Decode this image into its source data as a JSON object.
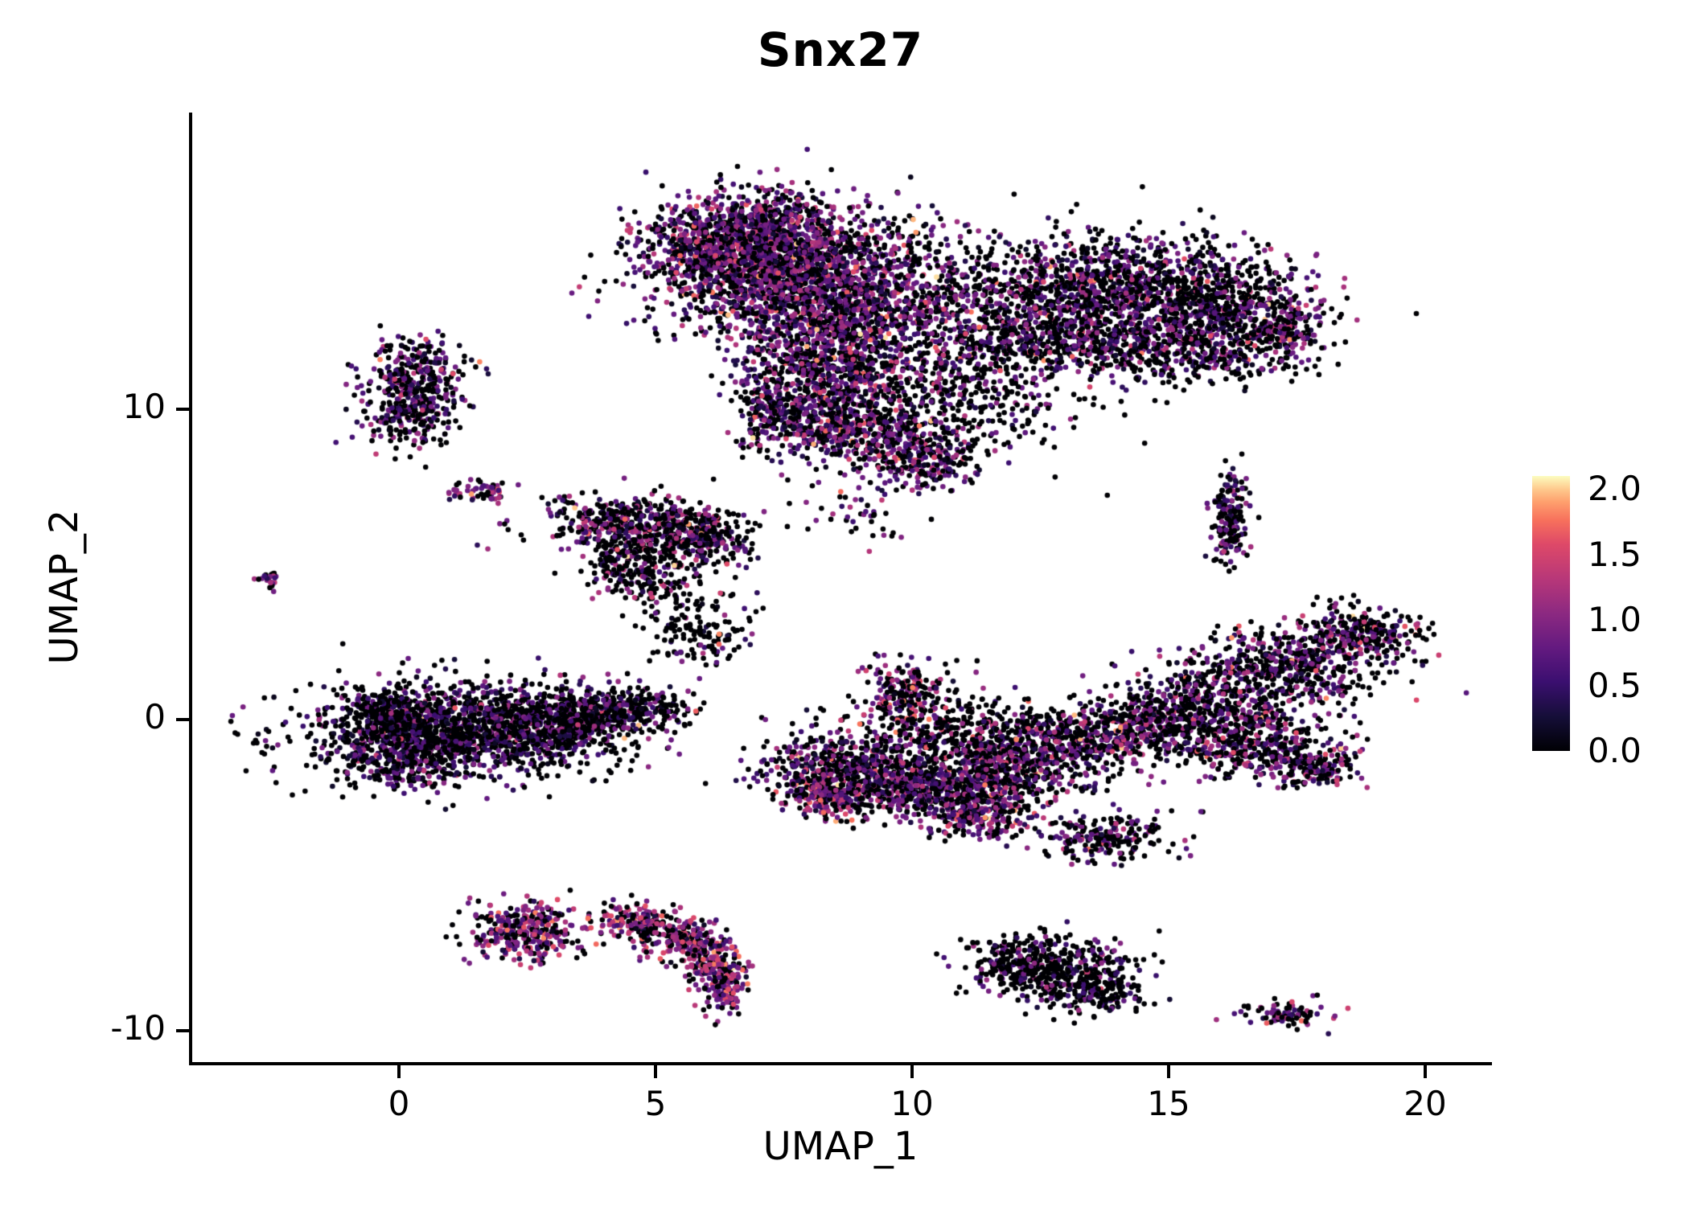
{
  "chart_data": {
    "type": "scatter",
    "title": "Snx27",
    "xlabel": "UMAP_1",
    "ylabel": "UMAP_2",
    "xlim": [
      -4.1,
      21.3
    ],
    "ylim": [
      -11.1,
      19.5
    ],
    "grid": false,
    "point_radius": 3.3,
    "seed": 1337,
    "xticks": [
      {
        "v": 0,
        "label": "0"
      },
      {
        "v": 5,
        "label": "5"
      },
      {
        "v": 10,
        "label": "10"
      },
      {
        "v": 15,
        "label": "15"
      },
      {
        "v": 20,
        "label": "20"
      }
    ],
    "yticks": [
      {
        "v": -10,
        "label": "-10"
      },
      {
        "v": 0,
        "label": "0"
      },
      {
        "v": 10,
        "label": "10"
      }
    ],
    "legend": {
      "position": "right",
      "vmin": 0,
      "vmax": 2.1,
      "ticks": [
        {
          "v": 2.0,
          "label": "2.0"
        },
        {
          "v": 1.5,
          "label": "1.5"
        },
        {
          "v": 1.0,
          "label": "1.0"
        },
        {
          "v": 0.5,
          "label": "0.5"
        },
        {
          "v": 0.0,
          "label": "0.0"
        }
      ]
    },
    "colormap": [
      {
        "v": 0.0,
        "c": "#000004"
      },
      {
        "v": 0.26,
        "c": "#150e38"
      },
      {
        "v": 0.53,
        "c": "#3b0f70"
      },
      {
        "v": 0.79,
        "c": "#641a80"
      },
      {
        "v": 1.05,
        "c": "#8c2981"
      },
      {
        "v": 1.31,
        "c": "#b73779"
      },
      {
        "v": 1.58,
        "c": "#de4968"
      },
      {
        "v": 1.76,
        "c": "#f7705c"
      },
      {
        "v": 1.9,
        "c": "#fe9f6d"
      },
      {
        "v": 2.0,
        "c": "#fec98d"
      },
      {
        "v": 2.1,
        "c": "#fcfdbf"
      }
    ],
    "clusters": [
      {
        "name": "top-central",
        "expr": {
          "p0": 0.38,
          "mean": 0.78,
          "sd": 0.38
        },
        "components": [
          {
            "x": 7.5,
            "y": 14.7,
            "sx": 1.35,
            "sy": 0.95,
            "n": 1700
          },
          {
            "x": 6.4,
            "y": 15.3,
            "sx": 0.8,
            "sy": 0.65,
            "n": 500
          },
          {
            "x": 7.2,
            "y": 16.2,
            "sx": 0.6,
            "sy": 0.45,
            "n": 160
          },
          {
            "x": 8.6,
            "y": 13.1,
            "sx": 1.0,
            "sy": 0.8,
            "n": 700
          },
          {
            "x": 8.4,
            "y": 11.4,
            "sx": 0.9,
            "sy": 0.9,
            "n": 650
          },
          {
            "x": 8.0,
            "y": 9.9,
            "sx": 0.6,
            "sy": 0.7,
            "n": 300
          },
          {
            "x": 9.3,
            "y": 9.0,
            "sx": 0.7,
            "sy": 0.55,
            "n": 300
          },
          {
            "x": 7.15,
            "y": 9.9,
            "sx": 0.25,
            "sy": 0.7,
            "n": 110,
            "p0": 0.5
          },
          {
            "x": 10.3,
            "y": 8.2,
            "sx": 0.5,
            "sy": 0.4,
            "n": 160
          },
          {
            "x": 10.6,
            "y": 10.6,
            "sx": 1.3,
            "sy": 1.2,
            "n": 520,
            "p0": 0.68
          },
          {
            "x": 10.9,
            "y": 14.0,
            "sx": 0.9,
            "sy": 0.9,
            "n": 260,
            "p0": 0.62
          },
          {
            "x": 11.9,
            "y": 12.6,
            "sx": 0.7,
            "sy": 0.9,
            "n": 200,
            "p0": 0.6
          },
          {
            "x": 9.0,
            "y": 6.8,
            "sx": 0.6,
            "sy": 0.6,
            "n": 40,
            "p0": 0.7
          }
        ]
      },
      {
        "name": "top-right",
        "expr": {
          "p0": 0.52,
          "mean": 0.72,
          "sd": 0.36
        },
        "components": [
          {
            "x": 14.2,
            "y": 13.8,
            "sx": 1.5,
            "sy": 0.95,
            "n": 1250
          },
          {
            "x": 16.3,
            "y": 12.9,
            "sx": 0.8,
            "sy": 0.8,
            "n": 400
          },
          {
            "x": 13.2,
            "y": 12.3,
            "sx": 0.9,
            "sy": 0.55,
            "n": 300
          },
          {
            "x": 15.2,
            "y": 11.7,
            "sx": 1.1,
            "sy": 0.45,
            "n": 280
          },
          {
            "x": 17.3,
            "y": 12.6,
            "sx": 0.4,
            "sy": 0.5,
            "n": 150,
            "mean": 0.9
          }
        ]
      },
      {
        "name": "upper-left",
        "expr": {
          "p0": 0.45,
          "mean": 0.7,
          "sd": 0.35
        },
        "components": [
          {
            "x": 0.3,
            "y": 11.0,
            "sx": 0.5,
            "sy": 0.7,
            "n": 300
          },
          {
            "x": 0.2,
            "y": 9.7,
            "sx": 0.45,
            "sy": 0.5,
            "n": 180,
            "p0": 0.6
          }
        ]
      },
      {
        "name": "tiny-upper-left",
        "expr": {
          "p0": 0.35,
          "mean": 1.0,
          "sd": 0.4
        },
        "components": [
          {
            "x": 1.6,
            "y": 7.35,
            "sx": 0.33,
            "sy": 0.17,
            "n": 55
          }
        ]
      },
      {
        "name": "far-left-dot",
        "expr": {
          "p0": 0.5,
          "mean": 0.9,
          "sd": 0.4
        },
        "components": [
          {
            "x": -2.55,
            "y": 4.55,
            "sx": 0.12,
            "sy": 0.16,
            "n": 22
          }
        ]
      },
      {
        "name": "mid-left",
        "expr": {
          "p0": 0.58,
          "mean": 0.8,
          "sd": 0.4
        },
        "components": [
          {
            "x": 4.5,
            "y": 6.3,
            "sx": 0.85,
            "sy": 0.45,
            "n": 420
          },
          {
            "x": 5.9,
            "y": 5.8,
            "sx": 0.55,
            "sy": 0.5,
            "n": 280
          },
          {
            "x": 4.6,
            "y": 4.9,
            "sx": 0.5,
            "sy": 0.55,
            "n": 230
          },
          {
            "x": 5.5,
            "y": 3.3,
            "sx": 0.45,
            "sy": 0.75,
            "n": 110,
            "p0": 0.8
          },
          {
            "x": 6.4,
            "y": 2.8,
            "sx": 0.4,
            "sy": 0.5,
            "n": 50,
            "p0": 0.8
          }
        ]
      },
      {
        "name": "left-main",
        "expr": {
          "p0": 0.62,
          "mean": 0.62,
          "sd": 0.33
        },
        "components": [
          {
            "x": 1.2,
            "y": -0.35,
            "sx": 1.5,
            "sy": 0.75,
            "n": 1500
          },
          {
            "x": 3.3,
            "y": 0.0,
            "sx": 0.9,
            "sy": 0.5,
            "n": 480
          },
          {
            "x": 0.1,
            "y": -1.2,
            "sx": 0.65,
            "sy": 0.55,
            "n": 280
          },
          {
            "x": 4.6,
            "y": 0.4,
            "sx": 0.55,
            "sy": 0.3,
            "n": 170
          },
          {
            "x": -0.3,
            "y": 0.2,
            "sx": 0.4,
            "sy": 0.4,
            "n": 150
          }
        ]
      },
      {
        "name": "center-body",
        "expr": {
          "p0": 0.48,
          "mean": 0.8,
          "sd": 0.38
        },
        "components": [
          {
            "x": 9.9,
            "y": 0.7,
            "sx": 0.45,
            "sy": 0.6,
            "n": 260,
            "mean": 0.95
          },
          {
            "x": 8.8,
            "y": -1.6,
            "sx": 0.85,
            "sy": 0.65,
            "n": 600
          },
          {
            "x": 10.4,
            "y": -2.3,
            "sx": 0.9,
            "sy": 0.55,
            "n": 520
          },
          {
            "x": 11.9,
            "y": -1.5,
            "sx": 0.9,
            "sy": 0.55,
            "n": 450
          },
          {
            "x": 13.3,
            "y": -0.6,
            "sx": 0.85,
            "sy": 0.5,
            "n": 420
          },
          {
            "x": 11.2,
            "y": -0.4,
            "sx": 1.0,
            "sy": 0.6,
            "n": 260,
            "p0": 0.75
          },
          {
            "x": 11.4,
            "y": -3.0,
            "sx": 0.5,
            "sy": 0.45,
            "n": 220,
            "mean": 0.9,
            "p0": 0.4
          },
          {
            "x": 8.3,
            "y": -2.4,
            "sx": 0.4,
            "sy": 0.35,
            "n": 180,
            "mean": 1.0,
            "p0": 0.35
          }
        ]
      },
      {
        "name": "right-diagonal",
        "expr": {
          "p0": 0.5,
          "mean": 0.8,
          "sd": 0.38
        },
        "components": [
          {
            "x": 15.8,
            "y": 0.4,
            "sx": 0.9,
            "sy": 0.8,
            "n": 550
          },
          {
            "x": 17.3,
            "y": 1.7,
            "sx": 0.9,
            "sy": 0.6,
            "n": 450
          },
          {
            "x": 18.8,
            "y": 2.8,
            "sx": 0.55,
            "sy": 0.45,
            "n": 280
          },
          {
            "x": 16.8,
            "y": -0.9,
            "sx": 0.75,
            "sy": 0.5,
            "n": 300
          },
          {
            "x": 17.9,
            "y": -1.6,
            "sx": 0.5,
            "sy": 0.35,
            "n": 140
          },
          {
            "x": 14.7,
            "y": -0.1,
            "sx": 0.5,
            "sy": 0.5,
            "n": 200,
            "p0": 0.6
          }
        ]
      },
      {
        "name": "small-mid-low",
        "expr": {
          "p0": 0.55,
          "mean": 0.7,
          "sd": 0.35
        },
        "components": [
          {
            "x": 13.8,
            "y": -3.8,
            "sx": 0.6,
            "sy": 0.4,
            "n": 210
          }
        ]
      },
      {
        "name": "right-vertical",
        "expr": {
          "p0": 0.5,
          "mean": 0.7,
          "sd": 0.35
        },
        "components": [
          {
            "x": 16.2,
            "y": 6.5,
            "sx": 0.2,
            "sy": 0.75,
            "n": 170
          }
        ]
      },
      {
        "name": "bottom-left",
        "expr": {
          "p0": 0.3,
          "mean": 1.0,
          "sd": 0.4
        },
        "components": [
          {
            "x": 2.5,
            "y": -6.8,
            "sx": 0.55,
            "sy": 0.5,
            "n": 330
          }
        ]
      },
      {
        "name": "bottom-arc",
        "expr": {
          "p0": 0.3,
          "mean": 1.0,
          "sd": 0.38
        },
        "components": [
          {
            "x": 4.7,
            "y": -6.5,
            "sx": 0.4,
            "sy": 0.3,
            "n": 140
          },
          {
            "x": 5.4,
            "y": -7.0,
            "sx": 0.4,
            "sy": 0.35,
            "n": 150
          },
          {
            "x": 6.0,
            "y": -7.7,
            "sx": 0.3,
            "sy": 0.45,
            "n": 150
          },
          {
            "x": 6.3,
            "y": -8.5,
            "sx": 0.28,
            "sy": 0.45,
            "n": 160
          }
        ]
      },
      {
        "name": "bottom-center",
        "expr": {
          "p0": 0.68,
          "mean": 0.65,
          "sd": 0.35
        },
        "components": [
          {
            "x": 12.5,
            "y": -7.9,
            "sx": 0.75,
            "sy": 0.5,
            "n": 430
          },
          {
            "x": 13.5,
            "y": -8.7,
            "sx": 0.5,
            "sy": 0.4,
            "n": 220
          }
        ]
      },
      {
        "name": "bottom-right-small",
        "expr": {
          "p0": 0.45,
          "mean": 0.85,
          "sd": 0.4
        },
        "components": [
          {
            "x": 17.3,
            "y": -9.5,
            "sx": 0.42,
            "sy": 0.22,
            "n": 85
          }
        ]
      }
    ]
  }
}
